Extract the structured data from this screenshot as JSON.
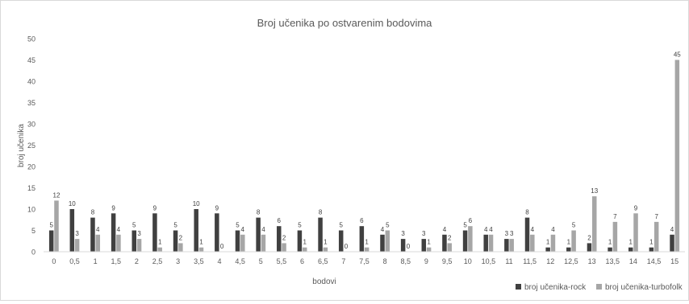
{
  "chart_data": {
    "type": "bar",
    "title": "Broj učenika po ostvarenim bodovima",
    "xlabel": "bodovi",
    "ylabel": "broj učenika",
    "ylim": [
      0,
      50
    ],
    "yticks": [
      0,
      5,
      10,
      15,
      20,
      25,
      30,
      35,
      40,
      45,
      50
    ],
    "grid": false,
    "legend_position": "bottom-right",
    "categories": [
      "0",
      "0,5",
      "1",
      "1,5",
      "2",
      "2,5",
      "3",
      "3,5",
      "4",
      "4,5",
      "5",
      "5,5",
      "6",
      "6,5",
      "7",
      "7,5",
      "8",
      "8,5",
      "9",
      "9,5",
      "10",
      "10,5",
      "11",
      "11,5",
      "12",
      "12,5",
      "13",
      "13,5",
      "14",
      "14,5",
      "15"
    ],
    "series": [
      {
        "name": "broj učenika-rock",
        "color": "#404040",
        "values": [
          5,
          10,
          8,
          9,
          5,
          9,
          5,
          10,
          9,
          5,
          8,
          6,
          5,
          8,
          5,
          6,
          4,
          3,
          3,
          4,
          5,
          4,
          3,
          8,
          1,
          1,
          2,
          1,
          1,
          1,
          4
        ]
      },
      {
        "name": "broj učenika-turbofolk",
        "color": "#a6a6a6",
        "values": [
          12,
          3,
          4,
          4,
          3,
          1,
          2,
          1,
          0,
          4,
          4,
          2,
          1,
          1,
          0,
          1,
          5,
          0,
          1,
          2,
          6,
          4,
          3,
          4,
          4,
          5,
          13,
          7,
          9,
          7,
          45
        ]
      }
    ]
  }
}
